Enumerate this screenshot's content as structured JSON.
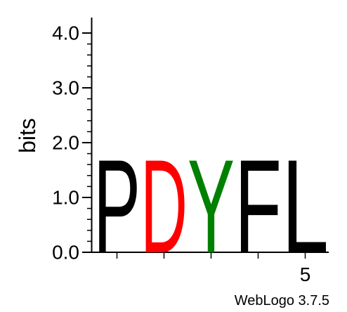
{
  "chart_data": {
    "type": "sequence-logo",
    "ylabel": "bits",
    "ylim": [
      0,
      4.0
    ],
    "y_ticks": [
      "0.0",
      "1.0",
      "2.0",
      "3.0",
      "4.0"
    ],
    "x_tick_labels": [
      {
        "position": 5,
        "label": "5"
      }
    ],
    "positions": [
      {
        "position": 1,
        "letter": "P",
        "bits": 1.75,
        "color": "#000000"
      },
      {
        "position": 2,
        "letter": "D",
        "bits": 1.75,
        "color": "#ff0000"
      },
      {
        "position": 3,
        "letter": "Y",
        "bits": 1.75,
        "color": "#008000"
      },
      {
        "position": 4,
        "letter": "F",
        "bits": 1.75,
        "color": "#000000"
      },
      {
        "position": 5,
        "letter": "L",
        "bits": 1.75,
        "color": "#000000"
      }
    ],
    "credit": "WebLogo 3.7.5"
  }
}
